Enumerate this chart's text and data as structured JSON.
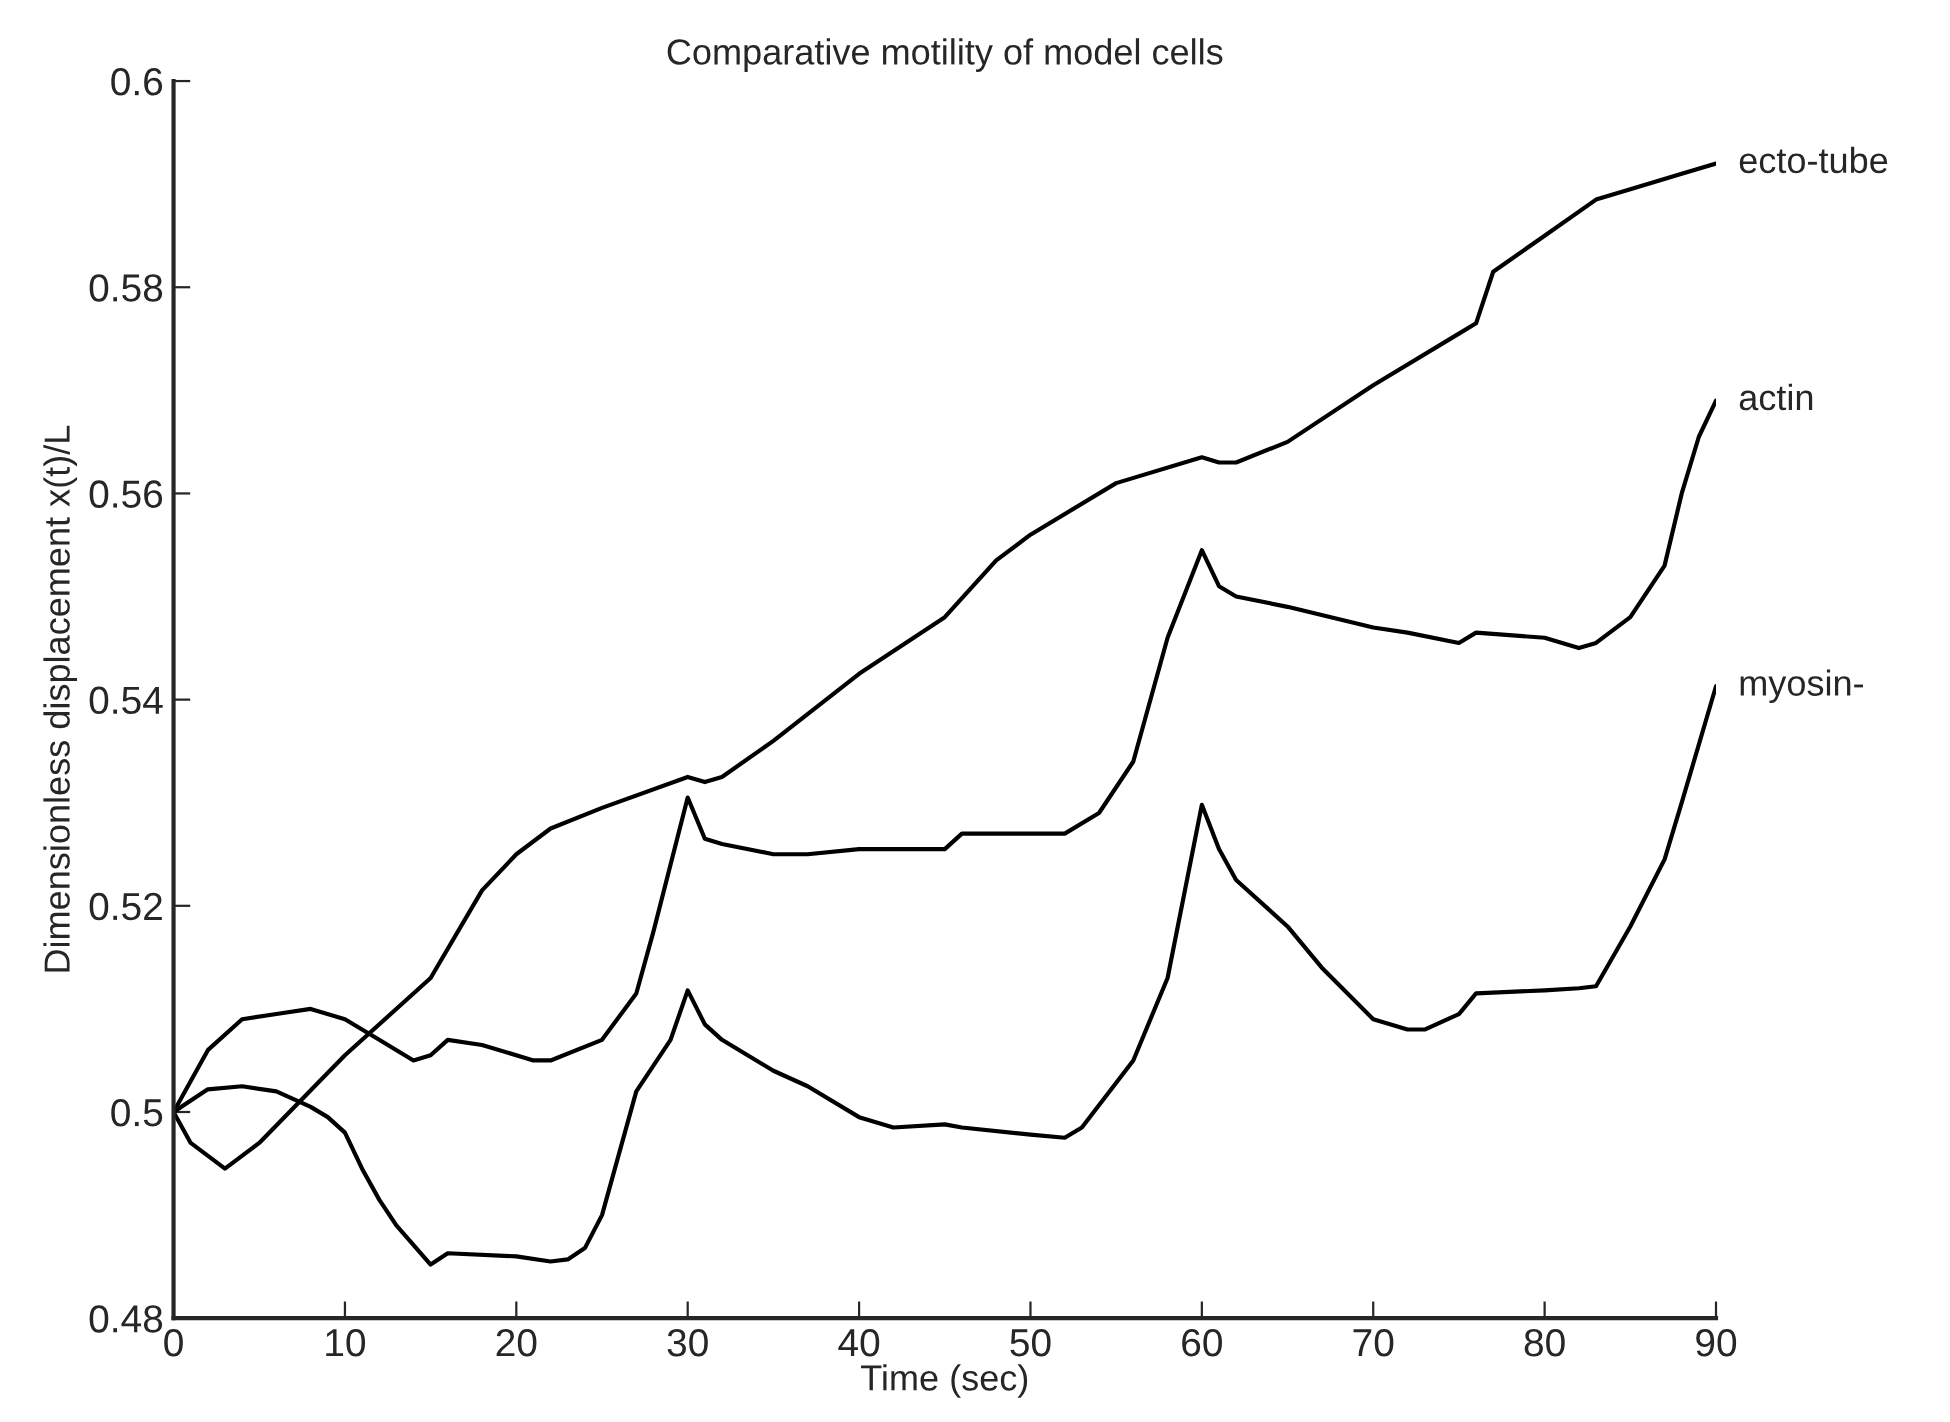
{
  "chart_data": {
    "type": "line",
    "title": "Comparative motility of model cells",
    "xlabel": "Time (sec)",
    "ylabel": "Dimensionless displacement x(t)/L",
    "xlim": [
      0,
      90
    ],
    "xticks": [
      0,
      10,
      20,
      30,
      40,
      50,
      60,
      70,
      80,
      90
    ],
    "ylim": [
      0.48,
      0.6
    ],
    "yticks": [
      0.48,
      0.5,
      0.52,
      0.54,
      0.56,
      0.58,
      0.6
    ],
    "grid": false,
    "legend": false,
    "marker": "none",
    "line_style": "solid",
    "series": [
      {
        "name": "ecto-tube",
        "color": "#000000",
        "x": [
          0,
          1,
          3,
          5,
          10,
          15,
          18,
          20,
          22,
          25,
          30,
          31,
          32,
          35,
          40,
          45,
          48,
          50,
          55,
          60,
          61,
          62,
          65,
          70,
          75,
          76,
          77,
          80,
          83,
          85,
          88,
          90
        ],
        "values": [
          0.5,
          0.497,
          0.4945,
          0.497,
          0.5055,
          0.513,
          0.5215,
          0.525,
          0.5275,
          0.5295,
          0.5325,
          0.532,
          0.5325,
          0.536,
          0.5425,
          0.548,
          0.5535,
          0.556,
          0.561,
          0.5635,
          0.563,
          0.563,
          0.565,
          0.5705,
          0.5755,
          0.5765,
          0.5815,
          0.585,
          0.5885,
          0.5895,
          0.591,
          0.592
        ]
      },
      {
        "name": "actin",
        "color": "#000000",
        "x": [
          0,
          2,
          4,
          6,
          8,
          10,
          12,
          14,
          15,
          16,
          18,
          21,
          22,
          25,
          27,
          28,
          30,
          31,
          32,
          35,
          37,
          40,
          44,
          45,
          46,
          50,
          52,
          54,
          56,
          58,
          60,
          61,
          62,
          65,
          70,
          72,
          75,
          76,
          80,
          82,
          83,
          85,
          87,
          88,
          89,
          90
        ],
        "values": [
          0.5,
          0.506,
          0.509,
          0.5095,
          0.51,
          0.509,
          0.507,
          0.505,
          0.5055,
          0.507,
          0.5065,
          0.505,
          0.505,
          0.507,
          0.5115,
          0.5175,
          0.5305,
          0.5265,
          0.526,
          0.525,
          0.525,
          0.5255,
          0.5255,
          0.5255,
          0.527,
          0.527,
          0.527,
          0.529,
          0.534,
          0.546,
          0.5545,
          0.551,
          0.55,
          0.549,
          0.547,
          0.5465,
          0.5455,
          0.5465,
          0.546,
          0.545,
          0.5455,
          0.548,
          0.553,
          0.56,
          0.5655,
          0.569
        ]
      },
      {
        "name": "myosin-",
        "color": "#000000",
        "x": [
          0,
          2,
          4,
          6,
          8,
          9,
          10,
          11,
          12,
          13,
          15,
          16,
          20,
          22,
          23,
          24,
          25,
          27,
          29,
          30,
          31,
          32,
          35,
          37,
          40,
          42,
          45,
          46,
          50,
          52,
          53,
          56,
          58,
          60,
          61,
          62,
          65,
          67,
          70,
          72,
          73,
          75,
          76,
          80,
          82,
          83,
          85,
          87,
          88,
          90
        ],
        "values": [
          0.5,
          0.5022,
          0.5025,
          0.502,
          0.5005,
          0.4995,
          0.498,
          0.4945,
          0.4915,
          0.489,
          0.4852,
          0.4863,
          0.486,
          0.4855,
          0.4857,
          0.4868,
          0.49,
          0.502,
          0.507,
          0.5118,
          0.5085,
          0.507,
          0.504,
          0.5025,
          0.4995,
          0.4985,
          0.4988,
          0.4985,
          0.4978,
          0.4975,
          0.4985,
          0.505,
          0.513,
          0.5298,
          0.5255,
          0.5225,
          0.518,
          0.514,
          0.509,
          0.508,
          0.508,
          0.5095,
          0.5115,
          0.5118,
          0.512,
          0.5122,
          0.518,
          0.5245,
          0.53,
          0.5413
        ]
      }
    ]
  }
}
